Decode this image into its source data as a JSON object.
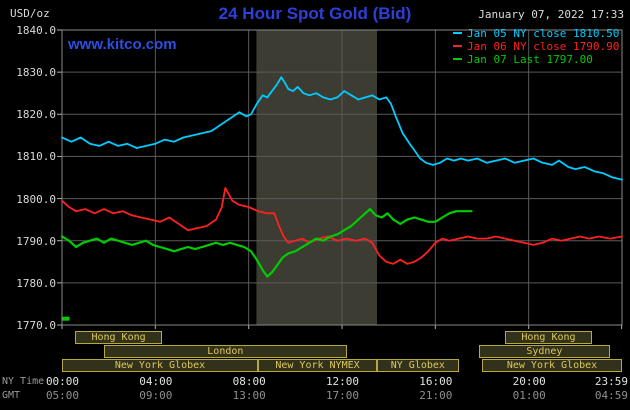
{
  "header": {
    "unit_label": "USD/oz",
    "title": "24 Hour Spot Gold (Bid)",
    "datetime": "January 07, 2022 17:33",
    "watermark": "www.kitco.com"
  },
  "colors": {
    "title_blue": "#2e3fd9",
    "watermark_blue": "#2d4fe0",
    "cyan": "#00ccff",
    "red": "#ff2121",
    "green": "#00cc00",
    "grid": "#5a5a5a",
    "border": "#8a8a8a",
    "tick": "#b0b0b0",
    "band": "#3c3c33",
    "session_border": "#b8a83e",
    "session_text": "#ddc85a",
    "session_bg": "#31311c"
  },
  "legend": [
    {
      "label": "Jan 05 NY close 1810.50",
      "color_key": "cyan"
    },
    {
      "label": "Jan 06 NY close 1790.90",
      "color_key": "red"
    },
    {
      "label": "Jan 07 Last 1797.00",
      "color_key": "green"
    }
  ],
  "chart_data": {
    "type": "line",
    "title": "24 Hour Spot Gold (Bid)",
    "ylabel": "USD/oz",
    "ylim": [
      1770,
      1840
    ],
    "xlim_hours": [
      0,
      24
    ],
    "grid": true,
    "legend_position": "top-right",
    "y_ticks": [
      {
        "value": 1840,
        "label": "1840.0"
      },
      {
        "value": 1830,
        "label": "1830.0"
      },
      {
        "value": 1820,
        "label": "1820.0"
      },
      {
        "value": 1810,
        "label": "1810.0"
      },
      {
        "value": 1800,
        "label": "1800.0"
      },
      {
        "value": 1790,
        "label": "1790.0"
      },
      {
        "value": 1780,
        "label": "1780.0"
      },
      {
        "value": 1770,
        "label": "1770.0"
      }
    ],
    "x_ticks": [
      {
        "hour": 0,
        "ny": "00:00",
        "gmt": "05:00"
      },
      {
        "hour": 4,
        "ny": "04:00",
        "gmt": "09:00"
      },
      {
        "hour": 8,
        "ny": "08:00",
        "gmt": "13:00"
      },
      {
        "hour": 12,
        "ny": "12:00",
        "gmt": "17:00"
      },
      {
        "hour": 16,
        "ny": "16:00",
        "gmt": "21:00"
      },
      {
        "hour": 20,
        "ny": "20:00",
        "gmt": "01:00"
      },
      {
        "hour": 23.9833,
        "ny": "23:59",
        "gmt": "04:59"
      }
    ],
    "axis_rows": {
      "ny_label": "NY Time",
      "gmt_label": "GMT"
    },
    "shaded_session_hours": [
      8.33,
      13.5
    ],
    "marker": {
      "hour": 0.15,
      "value": 1771.5,
      "color_key": "green"
    },
    "series": [
      {
        "name": "Jan 05",
        "color_key": "cyan",
        "close": 1810.5,
        "points": [
          [
            0,
            1814.5
          ],
          [
            0.4,
            1813.5
          ],
          [
            0.8,
            1814.5
          ],
          [
            1.2,
            1813
          ],
          [
            1.6,
            1812.5
          ],
          [
            2,
            1813.5
          ],
          [
            2.4,
            1812.5
          ],
          [
            2.8,
            1813
          ],
          [
            3.2,
            1812
          ],
          [
            3.6,
            1812.5
          ],
          [
            4,
            1813
          ],
          [
            4.4,
            1814
          ],
          [
            4.8,
            1813.5
          ],
          [
            5.2,
            1814.5
          ],
          [
            5.6,
            1815
          ],
          [
            6,
            1815.5
          ],
          [
            6.4,
            1816
          ],
          [
            6.8,
            1817.5
          ],
          [
            7.2,
            1819
          ],
          [
            7.6,
            1820.5
          ],
          [
            7.9,
            1819.5
          ],
          [
            8.1,
            1820
          ],
          [
            8.35,
            1822.5
          ],
          [
            8.6,
            1824.5
          ],
          [
            8.8,
            1824
          ],
          [
            9,
            1825.5
          ],
          [
            9.2,
            1827
          ],
          [
            9.4,
            1828.8
          ],
          [
            9.55,
            1827.5
          ],
          [
            9.7,
            1826
          ],
          [
            9.9,
            1825.5
          ],
          [
            10.1,
            1826.5
          ],
          [
            10.35,
            1825
          ],
          [
            10.6,
            1824.5
          ],
          [
            10.9,
            1825
          ],
          [
            11.2,
            1824
          ],
          [
            11.5,
            1823.5
          ],
          [
            11.8,
            1824
          ],
          [
            12.1,
            1825.5
          ],
          [
            12.4,
            1824.5
          ],
          [
            12.7,
            1823.5
          ],
          [
            13,
            1824
          ],
          [
            13.3,
            1824.5
          ],
          [
            13.6,
            1823.5
          ],
          [
            13.9,
            1824
          ],
          [
            14.1,
            1822.5
          ],
          [
            14.3,
            1819.5
          ],
          [
            14.6,
            1815.5
          ],
          [
            14.9,
            1813
          ],
          [
            15.1,
            1811.5
          ],
          [
            15.35,
            1809.5
          ],
          [
            15.6,
            1808.5
          ],
          [
            15.9,
            1808
          ],
          [
            16.2,
            1808.5
          ],
          [
            16.5,
            1809.5
          ],
          [
            16.8,
            1809
          ],
          [
            17.1,
            1809.5
          ],
          [
            17.4,
            1809
          ],
          [
            17.8,
            1809.5
          ],
          [
            18.2,
            1808.5
          ],
          [
            18.6,
            1809
          ],
          [
            19,
            1809.5
          ],
          [
            19.4,
            1808.5
          ],
          [
            19.8,
            1809
          ],
          [
            20.2,
            1809.5
          ],
          [
            20.6,
            1808.5
          ],
          [
            21,
            1808
          ],
          [
            21.3,
            1809
          ],
          [
            21.7,
            1807.5
          ],
          [
            22,
            1807
          ],
          [
            22.4,
            1807.5
          ],
          [
            22.8,
            1806.5
          ],
          [
            23.2,
            1806
          ],
          [
            23.6,
            1805
          ],
          [
            24,
            1804.5
          ]
        ]
      },
      {
        "name": "Jan 06",
        "color_key": "red",
        "close": 1790.9,
        "points": [
          [
            0,
            1799.5
          ],
          [
            0.3,
            1798
          ],
          [
            0.6,
            1797
          ],
          [
            1,
            1797.5
          ],
          [
            1.4,
            1796.5
          ],
          [
            1.8,
            1797.5
          ],
          [
            2.2,
            1796.5
          ],
          [
            2.6,
            1797
          ],
          [
            3,
            1796
          ],
          [
            3.4,
            1795.5
          ],
          [
            3.8,
            1795
          ],
          [
            4.2,
            1794.5
          ],
          [
            4.6,
            1795.5
          ],
          [
            5,
            1794
          ],
          [
            5.4,
            1792.5
          ],
          [
            5.8,
            1793
          ],
          [
            6.2,
            1793.5
          ],
          [
            6.6,
            1795
          ],
          [
            6.85,
            1798
          ],
          [
            7,
            1802.5
          ],
          [
            7.15,
            1801
          ],
          [
            7.3,
            1799.5
          ],
          [
            7.6,
            1798.5
          ],
          [
            8,
            1798
          ],
          [
            8.4,
            1797
          ],
          [
            8.8,
            1796.5
          ],
          [
            9.1,
            1796.5
          ],
          [
            9.3,
            1793.5
          ],
          [
            9.5,
            1791
          ],
          [
            9.7,
            1789.5
          ],
          [
            10,
            1790
          ],
          [
            10.3,
            1790.5
          ],
          [
            10.6,
            1789.5
          ],
          [
            11,
            1790.5
          ],
          [
            11.4,
            1791
          ],
          [
            11.8,
            1790
          ],
          [
            12.2,
            1790.5
          ],
          [
            12.6,
            1790
          ],
          [
            13,
            1790.5
          ],
          [
            13.3,
            1789.5
          ],
          [
            13.6,
            1786.5
          ],
          [
            13.9,
            1785
          ],
          [
            14.2,
            1784.5
          ],
          [
            14.5,
            1785.5
          ],
          [
            14.8,
            1784.5
          ],
          [
            15.1,
            1785
          ],
          [
            15.4,
            1786
          ],
          [
            15.7,
            1787.5
          ],
          [
            16,
            1789.5
          ],
          [
            16.3,
            1790.5
          ],
          [
            16.6,
            1790
          ],
          [
            17,
            1790.5
          ],
          [
            17.4,
            1791
          ],
          [
            17.8,
            1790.5
          ],
          [
            18.2,
            1790.5
          ],
          [
            18.6,
            1791
          ],
          [
            19,
            1790.5
          ],
          [
            19.4,
            1790
          ],
          [
            19.8,
            1789.5
          ],
          [
            20.2,
            1789
          ],
          [
            20.6,
            1789.5
          ],
          [
            21,
            1790.5
          ],
          [
            21.4,
            1790
          ],
          [
            21.8,
            1790.5
          ],
          [
            22.2,
            1791
          ],
          [
            22.6,
            1790.5
          ],
          [
            23,
            1791
          ],
          [
            23.5,
            1790.5
          ],
          [
            24,
            1791
          ]
        ]
      },
      {
        "name": "Jan 07",
        "color_key": "green",
        "last": 1797.0,
        "points": [
          [
            0,
            1791
          ],
          [
            0.3,
            1790
          ],
          [
            0.6,
            1788.5
          ],
          [
            0.9,
            1789.5
          ],
          [
            1.2,
            1790
          ],
          [
            1.5,
            1790.5
          ],
          [
            1.8,
            1789.5
          ],
          [
            2.1,
            1790.5
          ],
          [
            2.4,
            1790
          ],
          [
            2.7,
            1789.5
          ],
          [
            3,
            1789
          ],
          [
            3.3,
            1789.5
          ],
          [
            3.6,
            1790
          ],
          [
            3.9,
            1789
          ],
          [
            4.2,
            1788.5
          ],
          [
            4.5,
            1788
          ],
          [
            4.8,
            1787.5
          ],
          [
            5.1,
            1788
          ],
          [
            5.4,
            1788.5
          ],
          [
            5.7,
            1788
          ],
          [
            6,
            1788.5
          ],
          [
            6.3,
            1789
          ],
          [
            6.6,
            1789.5
          ],
          [
            6.9,
            1789
          ],
          [
            7.2,
            1789.5
          ],
          [
            7.5,
            1789
          ],
          [
            7.8,
            1788.5
          ],
          [
            8.1,
            1787.5
          ],
          [
            8.35,
            1785.5
          ],
          [
            8.6,
            1783
          ],
          [
            8.8,
            1781.5
          ],
          [
            9,
            1782.5
          ],
          [
            9.2,
            1784
          ],
          [
            9.45,
            1786
          ],
          [
            9.7,
            1787
          ],
          [
            10,
            1787.5
          ],
          [
            10.3,
            1788.5
          ],
          [
            10.6,
            1789.5
          ],
          [
            10.9,
            1790.5
          ],
          [
            11.2,
            1790
          ],
          [
            11.5,
            1791
          ],
          [
            11.8,
            1791.5
          ],
          [
            12.1,
            1792.5
          ],
          [
            12.4,
            1793.5
          ],
          [
            12.7,
            1795
          ],
          [
            13,
            1796.5
          ],
          [
            13.2,
            1797.5
          ],
          [
            13.45,
            1796
          ],
          [
            13.7,
            1795.5
          ],
          [
            13.95,
            1796.5
          ],
          [
            14.2,
            1795
          ],
          [
            14.5,
            1794
          ],
          [
            14.8,
            1795
          ],
          [
            15.1,
            1795.5
          ],
          [
            15.4,
            1795
          ],
          [
            15.7,
            1794.5
          ],
          [
            16,
            1794.5
          ],
          [
            16.3,
            1795.5
          ],
          [
            16.6,
            1796.5
          ],
          [
            16.9,
            1797
          ],
          [
            17.2,
            1797
          ],
          [
            17.55,
            1797
          ]
        ]
      }
    ],
    "sessions": [
      {
        "row": 0,
        "label": "Hong Kong",
        "start": 0.55,
        "end": 4.3
      },
      {
        "row": 0,
        "label": "Hong Kong",
        "start": 19.0,
        "end": 22.7
      },
      {
        "row": 1,
        "label": "London",
        "start": 1.8,
        "end": 12.2
      },
      {
        "row": 1,
        "label": "Sydney",
        "start": 17.85,
        "end": 23.5
      },
      {
        "row": 2,
        "label": "New York Globex",
        "start": 0,
        "end": 8.4
      },
      {
        "row": 2,
        "label": "New York NYMEX",
        "start": 8.4,
        "end": 13.5
      },
      {
        "row": 2,
        "label": "NY Globex",
        "start": 13.5,
        "end": 17.0
      },
      {
        "row": 2,
        "label": "New York Globex",
        "start": 18.0,
        "end": 24
      }
    ]
  }
}
